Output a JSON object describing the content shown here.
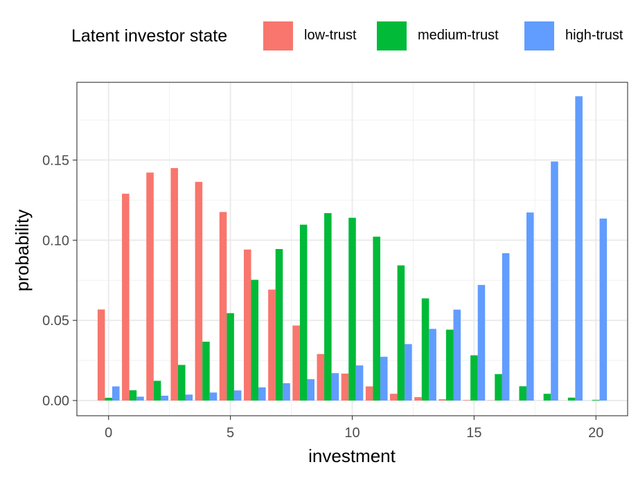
{
  "chart_data": {
    "type": "bar",
    "title": "",
    "xlabel": "investment",
    "ylabel": "probability",
    "x": [
      0,
      1,
      2,
      3,
      4,
      5,
      6,
      7,
      8,
      9,
      10,
      11,
      12,
      13,
      14,
      15,
      16,
      17,
      18,
      19,
      20
    ],
    "xlim": [
      -1.3,
      21.3
    ],
    "ylim": [
      -0.0095,
      0.1985
    ],
    "x_ticks": [
      0,
      5,
      10,
      15,
      20
    ],
    "y_ticks": [
      0.0,
      0.05,
      0.1,
      0.15
    ],
    "y_tick_labels": [
      "0.00",
      "0.05",
      "0.10",
      "0.15"
    ],
    "x_tick_labels": [
      "0",
      "5",
      "10",
      "15",
      "20"
    ],
    "grid": true,
    "legend": {
      "title": "Latent investor state",
      "position": "top"
    },
    "series": [
      {
        "name": "low-trust",
        "color": "#F8766D",
        "values": [
          0.0568,
          0.129,
          0.1422,
          0.145,
          0.1364,
          0.1176,
          0.0942,
          0.0692,
          0.0468,
          0.029,
          0.0168,
          0.0088,
          0.0042,
          0.0021,
          0.0008,
          0.0003,
          0.0001,
          0,
          0,
          0,
          0
        ]
      },
      {
        "name": "medium-trust",
        "color": "#00BA38",
        "values": [
          0.0017,
          0.0064,
          0.0123,
          0.0222,
          0.0367,
          0.0545,
          0.0753,
          0.0945,
          0.1097,
          0.1169,
          0.114,
          0.1022,
          0.0843,
          0.0637,
          0.0442,
          0.0282,
          0.0165,
          0.0089,
          0.0042,
          0.0018,
          0.0004
        ]
      },
      {
        "name": "high-trust",
        "color": "#619CFF",
        "values": [
          0.0088,
          0.0024,
          0.003,
          0.0037,
          0.005,
          0.0063,
          0.0082,
          0.0108,
          0.0133,
          0.0171,
          0.0219,
          0.0273,
          0.0352,
          0.0447,
          0.0567,
          0.0721,
          0.0919,
          0.1173,
          0.1491,
          0.1898,
          0.1135
        ]
      }
    ]
  }
}
